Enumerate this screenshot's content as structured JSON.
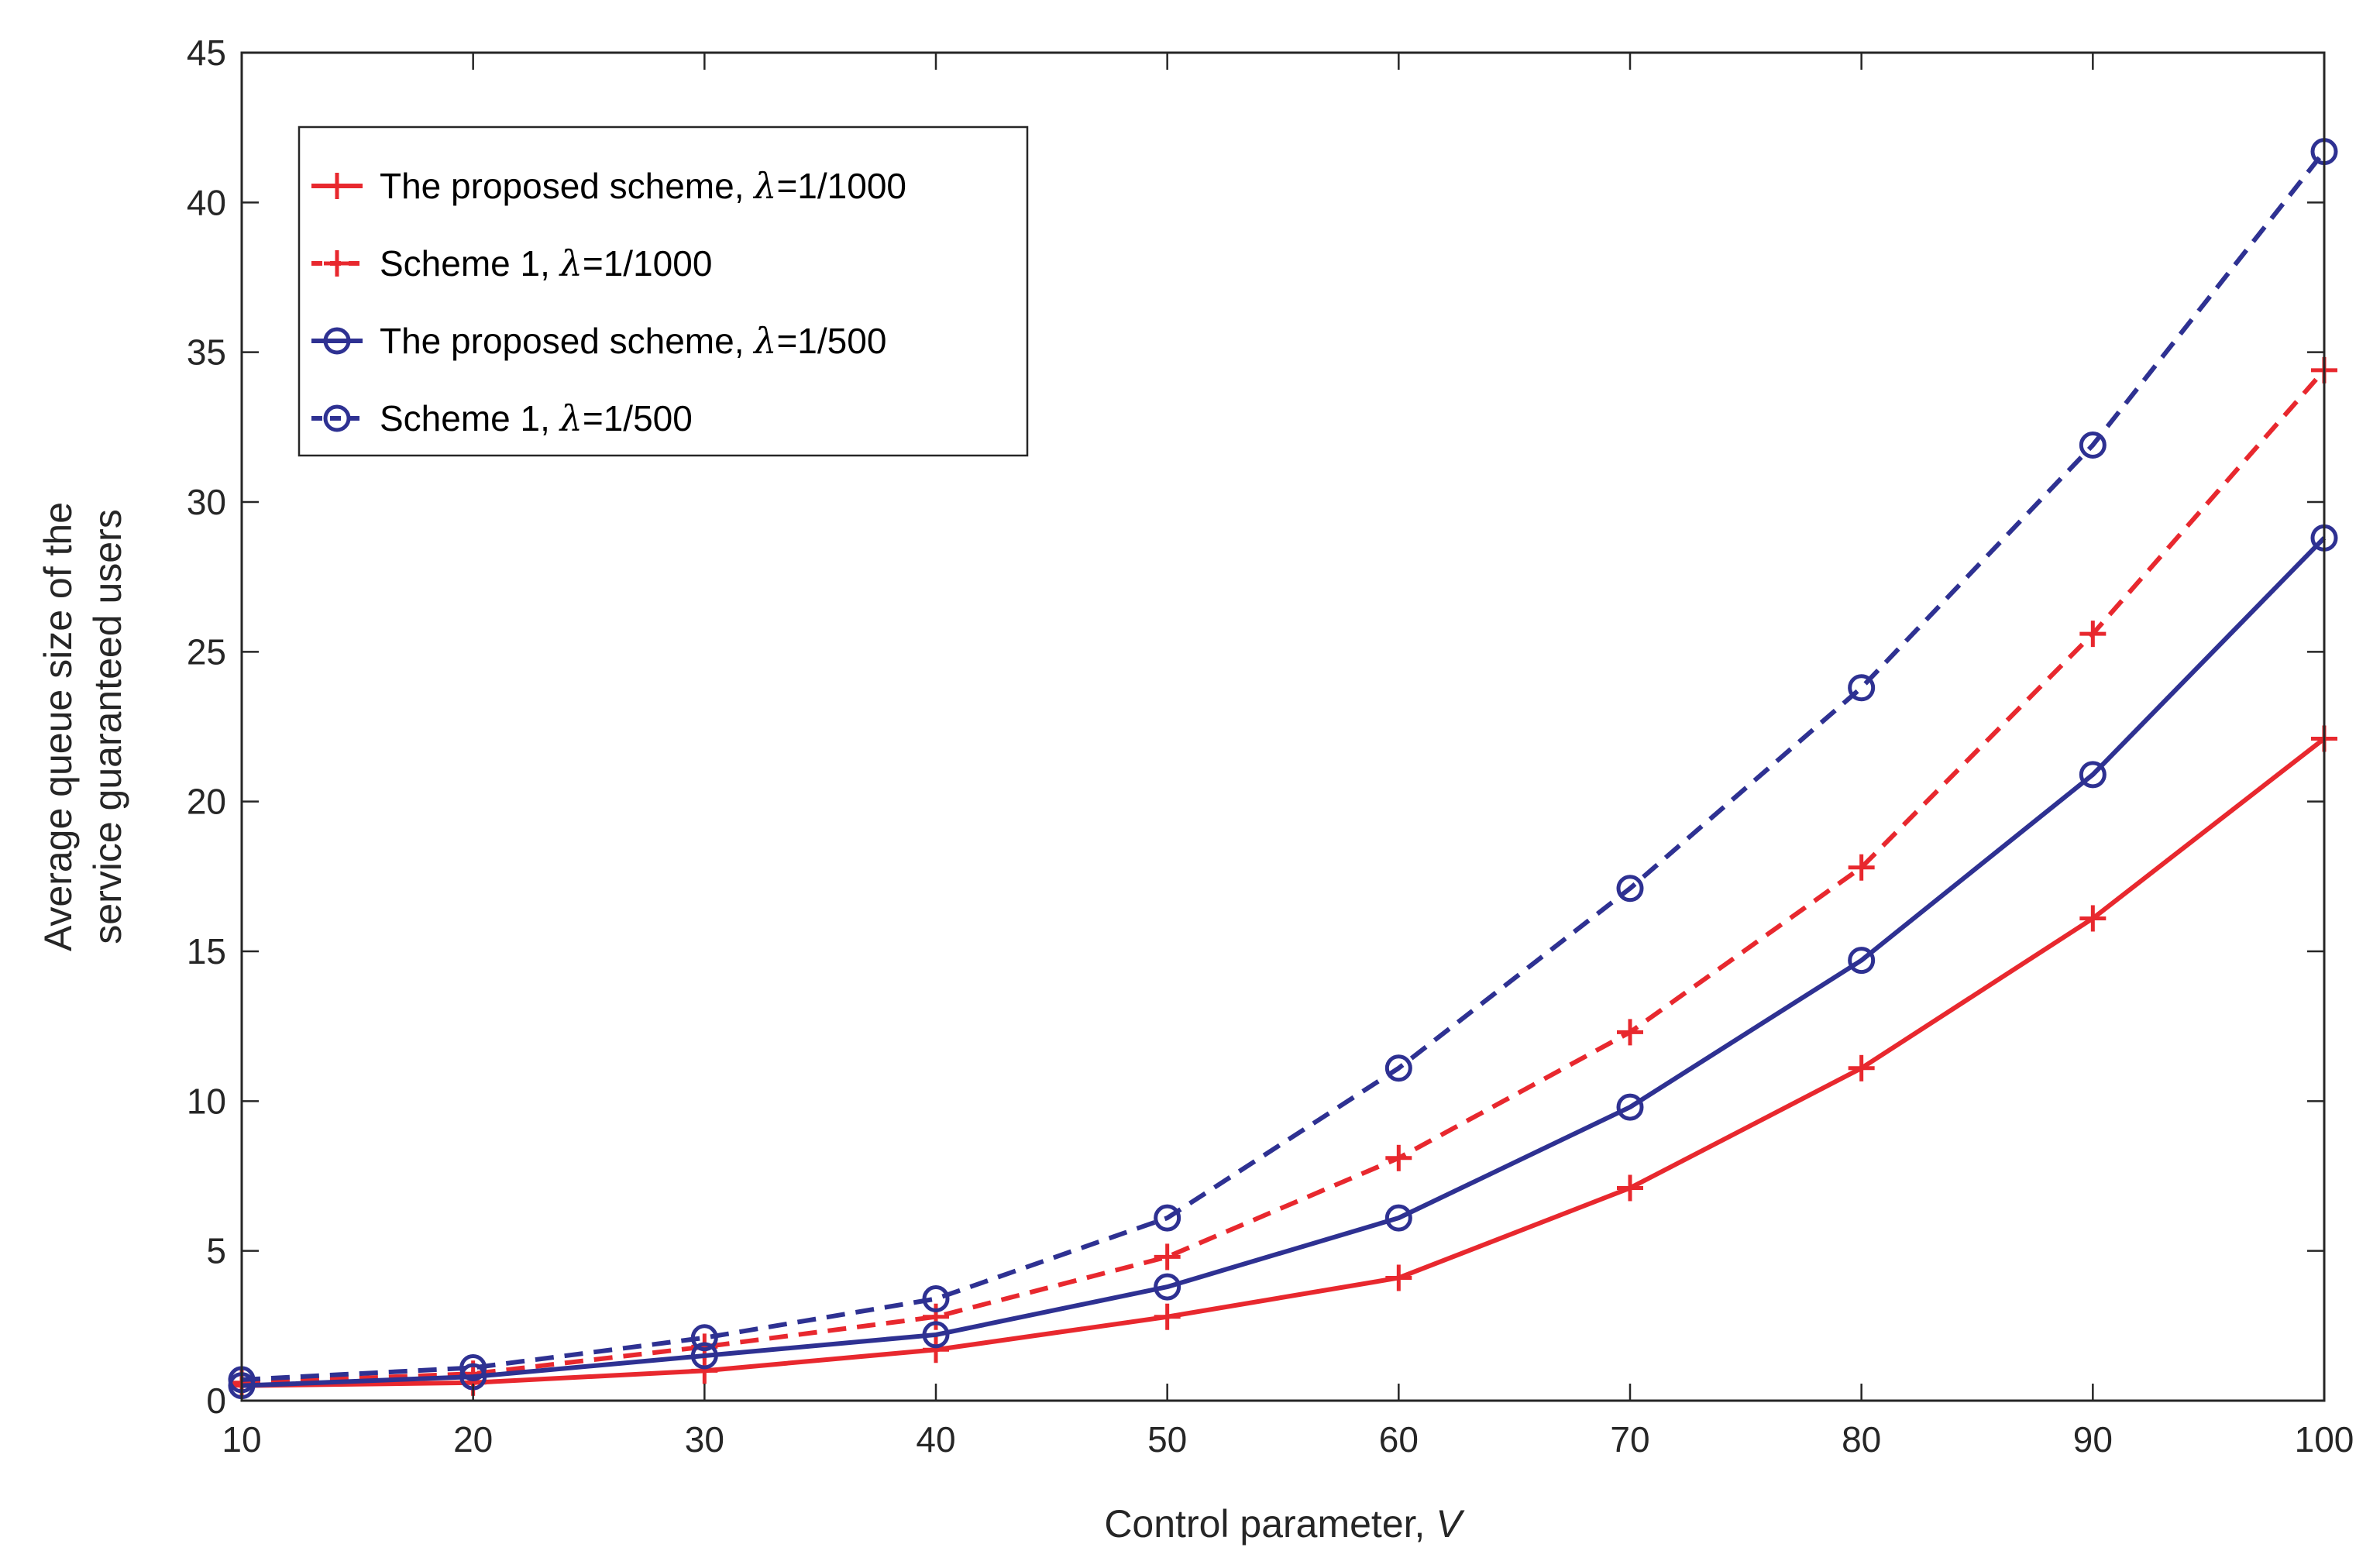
{
  "chart_data": {
    "type": "line",
    "title": "",
    "xlabel_text": "Control parameter, ",
    "xlabel_var": "V",
    "ylabel_line1": "Average queue size of the",
    "ylabel_line2": "service guaranteed users",
    "xlim": [
      10,
      100
    ],
    "ylim": [
      0,
      45
    ],
    "xticks": [
      10,
      20,
      30,
      40,
      50,
      60,
      70,
      80,
      90,
      100
    ],
    "yticks": [
      0,
      5,
      10,
      15,
      20,
      25,
      30,
      35,
      40,
      45
    ],
    "grid": false,
    "legend_position": "top-left",
    "x": [
      10,
      20,
      30,
      40,
      50,
      60,
      70,
      80,
      90,
      100
    ],
    "series": [
      {
        "name": "The proposed scheme, λ=1/1000",
        "legend_prefix": "The proposed scheme, ",
        "legend_symbol": "λ",
        "legend_suffix": "=1/1000",
        "color": "#e8282e",
        "line_style": "solid",
        "marker": "plus",
        "values": [
          0.5,
          0.6,
          1.0,
          1.7,
          2.8,
          4.1,
          7.1,
          11.1,
          16.1,
          22.1
        ]
      },
      {
        "name": "Scheme 1, λ=1/1000",
        "legend_prefix": "Scheme 1, ",
        "legend_symbol": "λ",
        "legend_suffix": "=1/1000",
        "color": "#e8282e",
        "line_style": "dashed",
        "marker": "plus",
        "values": [
          0.6,
          0.9,
          1.8,
          2.8,
          4.8,
          8.1,
          12.3,
          17.8,
          25.6,
          34.4
        ]
      },
      {
        "name": "The proposed scheme, λ=1/500",
        "legend_prefix": "The proposed scheme, ",
        "legend_symbol": "λ",
        "legend_suffix": "=1/500",
        "color": "#2e3192",
        "line_style": "solid",
        "marker": "circle",
        "values": [
          0.5,
          0.8,
          1.5,
          2.2,
          3.8,
          6.1,
          9.8,
          14.7,
          20.9,
          28.8
        ]
      },
      {
        "name": "Scheme 1, λ=1/500",
        "legend_prefix": "Scheme 1, ",
        "legend_symbol": "λ",
        "legend_suffix": "=1/500",
        "color": "#2e3192",
        "line_style": "dashed",
        "marker": "circle",
        "values": [
          0.7,
          1.1,
          2.1,
          3.4,
          6.1,
          11.1,
          17.1,
          23.8,
          31.9,
          41.7
        ]
      }
    ]
  }
}
